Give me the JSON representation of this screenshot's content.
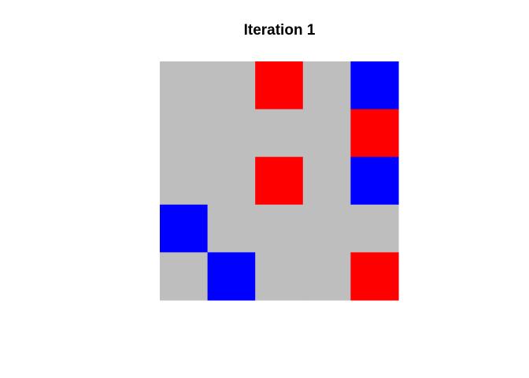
{
  "chart_data": {
    "type": "heatmap",
    "title": "Iteration 1",
    "rows": 5,
    "cols": 5,
    "colors": {
      "0": "#bebebe",
      "1": "#ff0000",
      "2": "#0000ff"
    },
    "cells": [
      [
        0,
        0,
        1,
        0,
        2
      ],
      [
        0,
        0,
        0,
        0,
        1
      ],
      [
        0,
        0,
        1,
        0,
        2
      ],
      [
        2,
        0,
        0,
        0,
        0
      ],
      [
        0,
        2,
        0,
        0,
        1
      ]
    ]
  }
}
